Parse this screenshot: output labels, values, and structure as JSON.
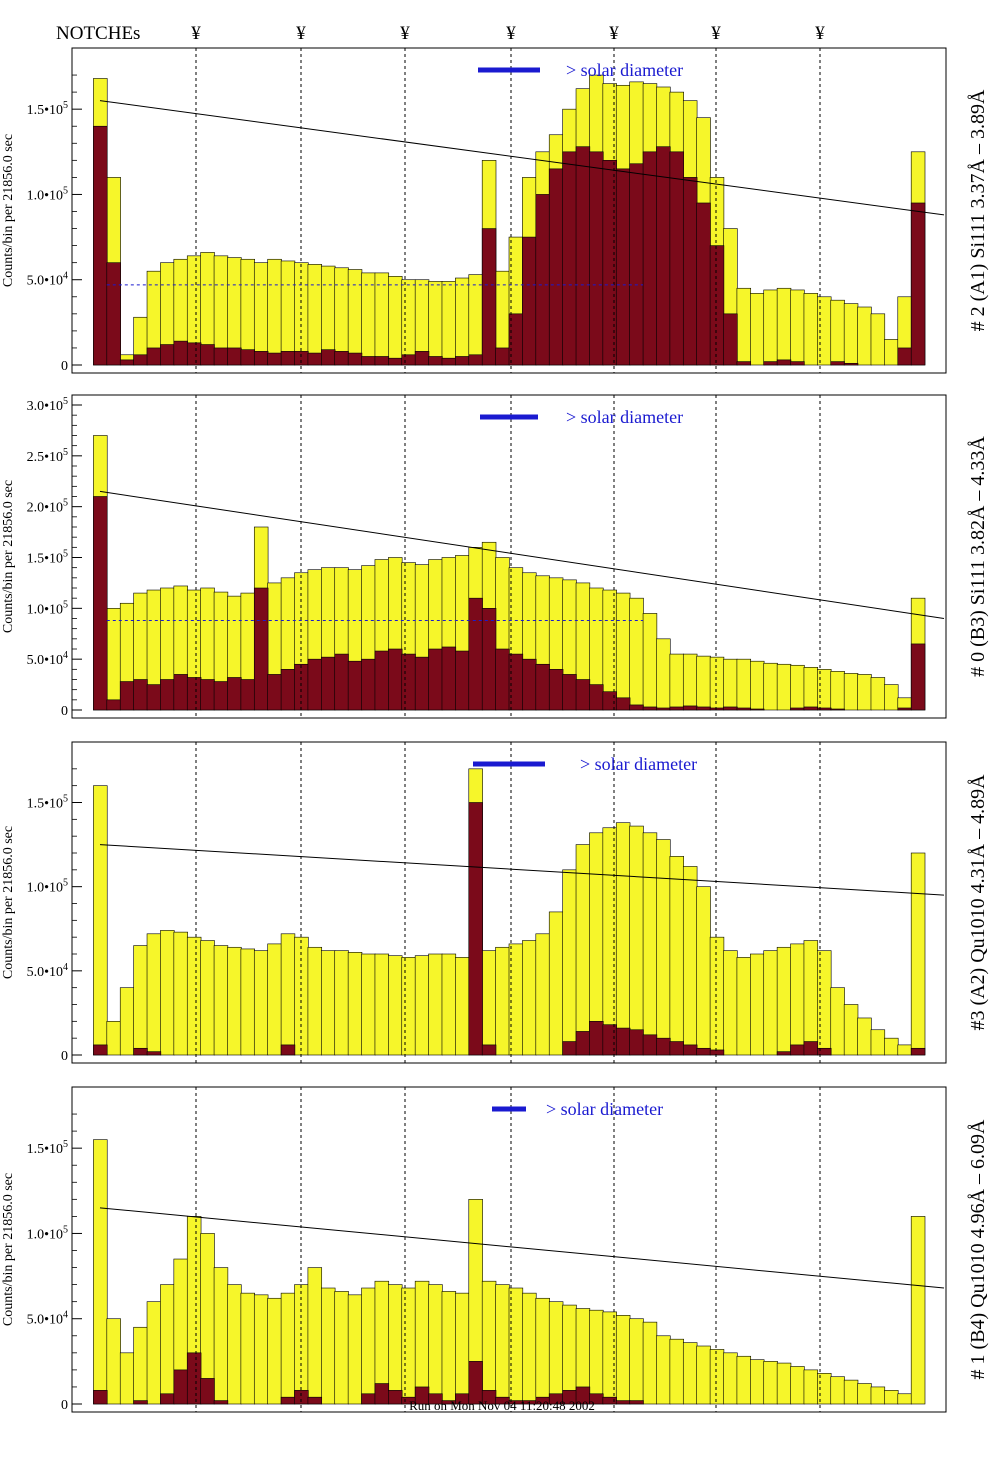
{
  "notches": {
    "label": "NOTCHEs",
    "marker": "¥",
    "count": 7
  },
  "footer": "Run on Mon Nov 04 11:20:48 2002",
  "colors": {
    "yellow": "#f6f62a",
    "maroon": "#7b0a1a",
    "blue": "#1a1ad0",
    "black": "#000000"
  },
  "chart_data": [
    {
      "type": "bar",
      "panel_title": "# 2 (A1) Si111  3.37Å – 3.89Å",
      "ylabel": "Counts/bin per  21856.0 sec",
      "annotation": "> solar diameter",
      "yticks": [
        "0",
        "5.0•10^4",
        "1.0•10^5",
        "1.5•10^5"
      ],
      "ylim": [
        0,
        180000
      ],
      "trend_line": [
        155000,
        88000
      ],
      "dashed_level": 47000,
      "series": [
        {
          "name": "yellow",
          "values": [
            0,
            168000,
            110000,
            6000,
            28000,
            55000,
            60000,
            62000,
            64000,
            66000,
            64000,
            63000,
            62000,
            60000,
            62000,
            61000,
            60000,
            59000,
            58000,
            57000,
            56000,
            54000,
            54000,
            52000,
            50000,
            50000,
            49000,
            49000,
            51000,
            53000,
            120000,
            55000,
            75000,
            110000,
            125000,
            135000,
            150000,
            162000,
            170000,
            165000,
            164000,
            166000,
            165000,
            163000,
            160000,
            155000,
            145000,
            110000,
            80000,
            45000,
            42000,
            44000,
            45000,
            44000,
            42000,
            40000,
            38000,
            36000,
            34000,
            30000,
            15000,
            40000,
            125000,
            0
          ]
        },
        {
          "name": "maroon",
          "values": [
            0,
            140000,
            60000,
            3000,
            6000,
            10000,
            12000,
            14000,
            13000,
            12000,
            10000,
            10000,
            9000,
            8000,
            7000,
            8000,
            8000,
            7000,
            9000,
            8000,
            7000,
            5000,
            5000,
            4000,
            6000,
            8000,
            5000,
            4000,
            5000,
            6000,
            80000,
            10000,
            30000,
            75000,
            100000,
            115000,
            125000,
            128000,
            125000,
            120000,
            115000,
            118000,
            125000,
            128000,
            125000,
            110000,
            95000,
            70000,
            30000,
            2000,
            0,
            2000,
            3000,
            2000,
            0,
            0,
            2000,
            1000,
            0,
            0,
            0,
            10000,
            95000,
            0
          ]
        }
      ]
    },
    {
      "type": "bar",
      "panel_title": "# 0 (B3) Si111  3.82Å – 4.33Å",
      "ylabel": "Counts/bin per  21856.0 sec",
      "annotation": "> solar diameter",
      "yticks": [
        "0",
        "5.0•10^4",
        "1.0•10^5",
        "1.5•10^5",
        "2.0•10^5",
        "2.5•10^5",
        "3.0•10^5"
      ],
      "ylim": [
        0,
        300000
      ],
      "trend_line": [
        215000,
        90000
      ],
      "dashed_level": 88000,
      "series": [
        {
          "name": "yellow",
          "values": [
            0,
            270000,
            100000,
            105000,
            115000,
            118000,
            120000,
            122000,
            118000,
            120000,
            116000,
            112000,
            115000,
            180000,
            125000,
            130000,
            135000,
            138000,
            140000,
            140000,
            138000,
            142000,
            148000,
            150000,
            145000,
            143000,
            148000,
            150000,
            152000,
            160000,
            165000,
            150000,
            140000,
            135000,
            132000,
            130000,
            128000,
            125000,
            120000,
            118000,
            115000,
            110000,
            95000,
            70000,
            55000,
            55000,
            53000,
            52000,
            50000,
            50000,
            48000,
            46000,
            45000,
            44000,
            42000,
            40000,
            38000,
            36000,
            35000,
            32000,
            25000,
            12000,
            110000,
            0
          ]
        },
        {
          "name": "maroon",
          "values": [
            0,
            210000,
            10000,
            28000,
            30000,
            25000,
            30000,
            35000,
            32000,
            30000,
            28000,
            32000,
            30000,
            120000,
            35000,
            40000,
            45000,
            50000,
            52000,
            55000,
            48000,
            50000,
            58000,
            60000,
            55000,
            52000,
            60000,
            62000,
            58000,
            110000,
            100000,
            60000,
            55000,
            50000,
            45000,
            40000,
            35000,
            30000,
            25000,
            18000,
            12000,
            5000,
            3000,
            2000,
            3000,
            4000,
            3000,
            2000,
            3000,
            2000,
            1000,
            0,
            0,
            2000,
            3000,
            2000,
            1000,
            0,
            0,
            0,
            0,
            2000,
            65000,
            0
          ]
        }
      ]
    },
    {
      "type": "bar",
      "panel_title": "#3 (A2) Qu1010  4.31Å – 4.89Å",
      "ylabel": "Counts/bin per  21856.0 sec",
      "annotation": "> solar diameter",
      "yticks": [
        "0",
        "5.0•10^4",
        "1.0•10^5",
        "1.5•10^5"
      ],
      "ylim": [
        0,
        180000
      ],
      "trend_line": [
        125000,
        95000
      ],
      "dashed_level": null,
      "series": [
        {
          "name": "yellow",
          "values": [
            0,
            160000,
            20000,
            40000,
            65000,
            72000,
            74000,
            73000,
            70000,
            68000,
            65000,
            64000,
            63000,
            62000,
            66000,
            72000,
            70000,
            64000,
            62000,
            62000,
            61000,
            60000,
            60000,
            59000,
            58000,
            59000,
            60000,
            60000,
            58000,
            170000,
            62000,
            64000,
            66000,
            68000,
            72000,
            85000,
            110000,
            125000,
            132000,
            135000,
            138000,
            136000,
            132000,
            128000,
            118000,
            112000,
            100000,
            70000,
            62000,
            58000,
            60000,
            62000,
            64000,
            66000,
            68000,
            62000,
            40000,
            30000,
            22000,
            15000,
            10000,
            6000,
            120000,
            0
          ]
        },
        {
          "name": "maroon",
          "values": [
            0,
            6000,
            0,
            0,
            4000,
            2000,
            0,
            0,
            0,
            0,
            0,
            0,
            0,
            0,
            0,
            6000,
            0,
            0,
            0,
            0,
            0,
            0,
            0,
            0,
            0,
            0,
            0,
            0,
            0,
            150000,
            6000,
            0,
            0,
            0,
            0,
            0,
            8000,
            14000,
            20000,
            18000,
            16000,
            15000,
            12000,
            10000,
            8000,
            6000,
            4000,
            3000,
            0,
            0,
            0,
            0,
            2000,
            6000,
            8000,
            4000,
            0,
            0,
            0,
            0,
            0,
            0,
            4000,
            0
          ]
        }
      ]
    },
    {
      "type": "bar",
      "panel_title": "# 1 (B4) Qu1010 4.96Å – 6.09Å",
      "ylabel": "Counts/bin per  21856.0 sec",
      "annotation": "> solar diameter",
      "yticks": [
        "0",
        "5.0•10^4",
        "1.0•10^5",
        "1.5•10^5"
      ],
      "ylim": [
        0,
        180000
      ],
      "trend_line": [
        115000,
        68000
      ],
      "dashed_level": null,
      "series": [
        {
          "name": "yellow",
          "values": [
            0,
            155000,
            50000,
            30000,
            45000,
            60000,
            70000,
            85000,
            110000,
            100000,
            80000,
            70000,
            65000,
            64000,
            62000,
            65000,
            70000,
            80000,
            68000,
            66000,
            64000,
            68000,
            72000,
            70000,
            68000,
            72000,
            70000,
            66000,
            65000,
            120000,
            72000,
            70000,
            68000,
            65000,
            62000,
            60000,
            58000,
            56000,
            55000,
            54000,
            52000,
            50000,
            48000,
            40000,
            38000,
            36000,
            34000,
            32000,
            30000,
            28000,
            26000,
            25000,
            24000,
            22000,
            20000,
            18000,
            16000,
            14000,
            12000,
            10000,
            8000,
            6000,
            110000,
            0
          ]
        },
        {
          "name": "maroon",
          "values": [
            0,
            8000,
            0,
            0,
            2000,
            0,
            6000,
            20000,
            30000,
            15000,
            2000,
            0,
            0,
            0,
            0,
            4000,
            8000,
            4000,
            0,
            0,
            0,
            6000,
            12000,
            8000,
            4000,
            10000,
            6000,
            2000,
            6000,
            25000,
            8000,
            4000,
            2000,
            2000,
            4000,
            6000,
            8000,
            10000,
            6000,
            4000,
            2000,
            2000,
            0,
            0,
            0,
            0,
            0,
            0,
            0,
            0,
            0,
            0,
            0,
            0,
            0,
            0,
            0,
            0,
            0,
            0,
            0,
            0,
            0,
            0
          ]
        }
      ]
    }
  ]
}
